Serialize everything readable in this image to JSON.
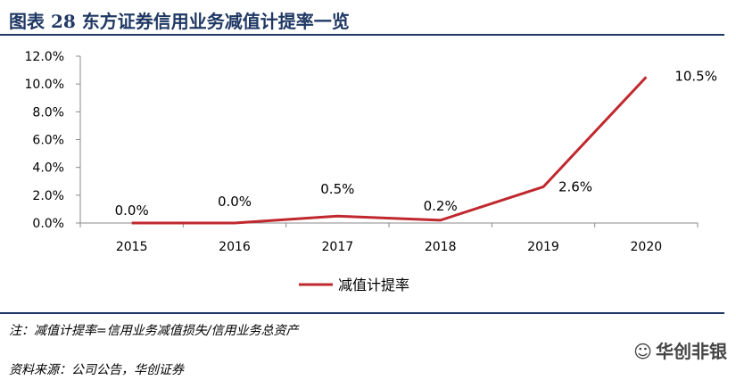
{
  "figure": {
    "title": "图表 28   东方证券信用业务减值计提率一览",
    "note": "注：减值计提率=信用业务减值损失/信用业务总资产",
    "source": "资料来源：公司公告，华创证券",
    "watermark": "华创非银",
    "watermark_icon": "wechat-icon",
    "accent_color": "#1f3864"
  },
  "chart_data": {
    "type": "line",
    "categories": [
      "2015",
      "2016",
      "2017",
      "2018",
      "2019",
      "2020"
    ],
    "series": [
      {
        "name": "减值计提率",
        "color": "#c0282e",
        "values": [
          0.0,
          0.0,
          0.5,
          0.2,
          2.6,
          10.5
        ],
        "labels": [
          "0.0%",
          "0.0%",
          "0.5%",
          "0.2%",
          "2.6%",
          "10.5%"
        ]
      }
    ],
    "ylim": [
      0,
      12
    ],
    "yticks": [
      "0.0%",
      "2.0%",
      "4.0%",
      "6.0%",
      "8.0%",
      "10.0%",
      "12.0%"
    ],
    "legend": "bottom-center",
    "grid": false
  }
}
